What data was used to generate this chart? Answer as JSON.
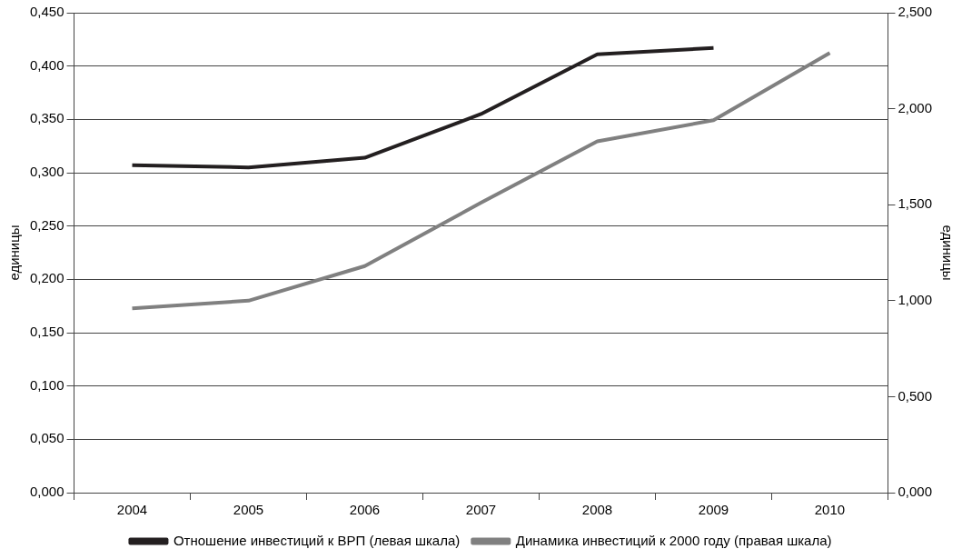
{
  "chart_data": {
    "type": "line",
    "ylabel": "единицы",
    "y2label": "единицы",
    "categories": [
      "2004",
      "2005",
      "2006",
      "2007",
      "2008",
      "2009",
      "2010"
    ],
    "series": [
      {
        "name": "Отношение инвестиций к ВРП (левая шкала)",
        "color": "#231f20",
        "values": [
          0.307,
          0.305,
          0.314,
          0.355,
          0.411,
          0.417,
          null
        ]
      },
      {
        "name": "Динамика инвестиций к 2000 году (правая шкала)",
        "color": "#808080",
        "axis": "y2",
        "values": [
          0.96,
          1.0,
          1.18,
          1.51,
          1.83,
          1.94,
          2.29
        ]
      }
    ],
    "ylim": [
      0,
      0.45
    ],
    "yticks": [
      {
        "value": 0,
        "label": "0,000"
      },
      {
        "value": 0.05,
        "label": "0,050"
      },
      {
        "value": 0.1,
        "label": "0,100"
      },
      {
        "value": 0.15,
        "label": "0,150"
      },
      {
        "value": 0.2,
        "label": "0,200"
      },
      {
        "value": 0.25,
        "label": "0,250"
      },
      {
        "value": 0.3,
        "label": "0,300"
      },
      {
        "value": 0.35,
        "label": "0,350"
      },
      {
        "value": 0.4,
        "label": "0,400"
      },
      {
        "value": 0.45,
        "label": "0,450"
      }
    ],
    "y2lim": [
      0,
      2.5
    ],
    "y2ticks": [
      {
        "value": 0,
        "label": "0,000"
      },
      {
        "value": 0.5,
        "label": "0,500"
      },
      {
        "value": 1,
        "label": "1,000"
      },
      {
        "value": 1.5,
        "label": "1,500"
      },
      {
        "value": 2,
        "label": "2,000"
      },
      {
        "value": 2.5,
        "label": "2,500"
      }
    ],
    "grid": "y",
    "legend": "bottom",
    "marker": "none",
    "line_style": "solid"
  }
}
